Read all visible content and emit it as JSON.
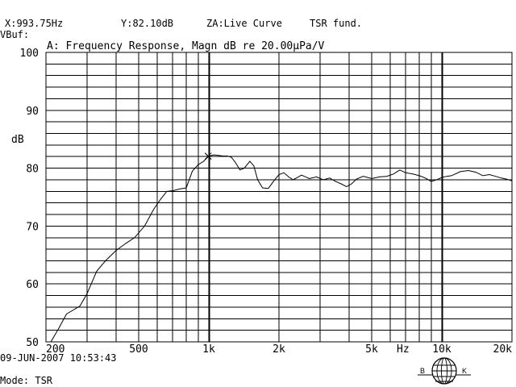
{
  "header": {
    "cursor_x": "X:993.75Hz",
    "cursor_y": "Y:82.10dB",
    "za_label": "ZA:Live Curve",
    "source_label": "TSR fund.",
    "vbuf_label": "VBuf:"
  },
  "footer": {
    "timestamp": "09-JUN-2007 10:53:43",
    "mode": "Mode: TSR"
  },
  "logo": {
    "letters": [
      "B",
      "K"
    ],
    "name": "bk-globe-logo"
  },
  "colors": {
    "background": "#ffffff",
    "ink": "#000000"
  },
  "chart_data": {
    "type": "line",
    "title": "A: Frequency Response, Magn dB re 20.00µPa/V",
    "xlabel": "Hz",
    "ylabel": "dB",
    "xscale": "log",
    "xlim": [
      200,
      20000
    ],
    "ylim": [
      50,
      100
    ],
    "grid": true,
    "x_ticks": [
      200,
      500,
      1000,
      2000,
      5000,
      10000,
      20000
    ],
    "x_tick_labels": [
      "200",
      "500",
      "1k",
      "2k",
      "5k",
      "10k",
      "20k"
    ],
    "y_ticks": [
      50,
      60,
      70,
      80,
      90,
      100
    ],
    "y_tick_labels": [
      "50",
      "60",
      "70",
      "80",
      "90",
      "100"
    ],
    "cursor": {
      "x": 993.75,
      "y": 82.1
    },
    "series": [
      {
        "x": [
          210,
          226,
          245,
          262,
          280,
          300,
          330,
          360,
          400,
          440,
          480,
          530,
          580,
          620,
          660,
          700,
          750,
          800,
          850,
          900,
          950,
          1000,
          1050,
          1100,
          1150,
          1200,
          1250,
          1300,
          1360,
          1420,
          1500,
          1560,
          1620,
          1700,
          1800,
          1900,
          2000,
          2100,
          2200,
          2300,
          2400,
          2500,
          2700,
          2900,
          3100,
          3300,
          3500,
          3700,
          3900,
          4100,
          4300,
          4600,
          5000,
          5400,
          5800,
          6200,
          6600,
          7000,
          7500,
          8000,
          8500,
          9000,
          9500,
          10000,
          10500,
          11000,
          12000,
          13000,
          14000,
          15000,
          16000,
          17000,
          18000,
          19000,
          20000
        ],
        "values": [
          50.0,
          52.2,
          54.8,
          55.5,
          56.2,
          58.3,
          62.2,
          64.0,
          65.8,
          67.0,
          68.0,
          70.0,
          72.9,
          74.6,
          76.0,
          76.1,
          76.4,
          76.6,
          79.5,
          80.6,
          81.2,
          82.1,
          82.3,
          82.2,
          82.1,
          82.1,
          81.9,
          81.0,
          79.7,
          80.0,
          81.2,
          80.4,
          78.0,
          76.6,
          76.5,
          77.8,
          78.9,
          79.2,
          78.5,
          78.0,
          78.4,
          78.8,
          78.2,
          78.5,
          78.0,
          78.3,
          77.7,
          77.3,
          76.8,
          77.3,
          78.1,
          78.6,
          78.2,
          78.5,
          78.6,
          79.0,
          79.7,
          79.2,
          79.0,
          78.7,
          78.3,
          77.7,
          78.0,
          78.4,
          78.6,
          78.7,
          79.4,
          79.6,
          79.3,
          78.7,
          78.9,
          78.6,
          78.3,
          78.1,
          77.8
        ]
      }
    ]
  }
}
